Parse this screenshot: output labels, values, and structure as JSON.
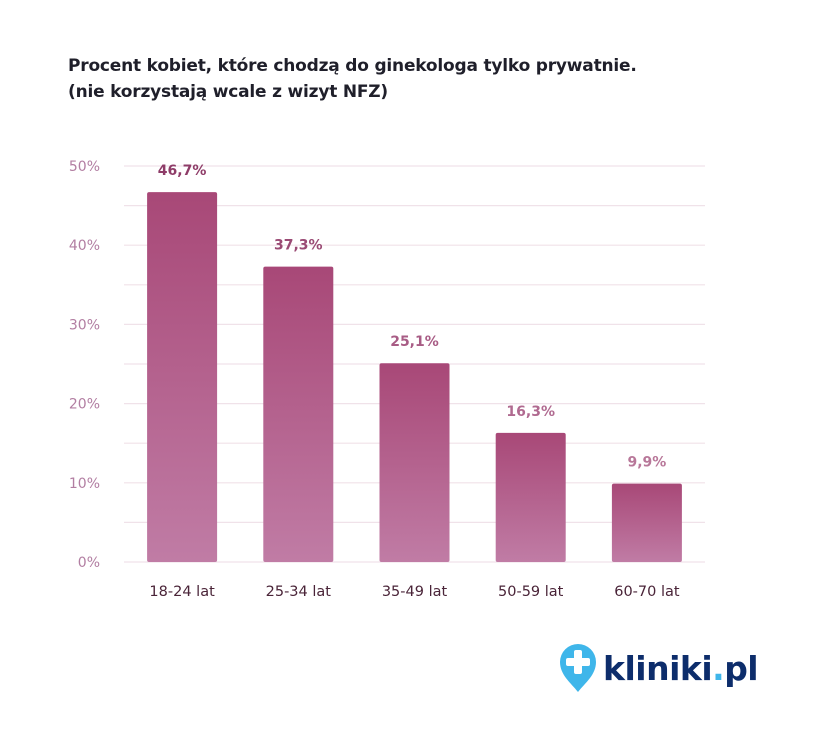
{
  "chart_data": {
    "type": "bar",
    "title": "Procent kobiet, które chodzą do ginekologa tylko prywatnie.",
    "subtitle": "(nie korzystają wcale z wizyt NFZ)",
    "categories": [
      "18-24 lat",
      "25-34 lat",
      "35-49 lat",
      "50-59 lat",
      "60-70 lat"
    ],
    "values": [
      46.7,
      37.3,
      25.1,
      16.3,
      9.9
    ],
    "data_labels": [
      "46,7%",
      "37,3%",
      "25,1%",
      "16,3%",
      "9,9%"
    ],
    "ylim": [
      0,
      50
    ],
    "yticks": [
      0,
      10,
      20,
      30,
      40,
      50
    ],
    "ytick_labels": [
      "0%",
      "10%",
      "20%",
      "30%",
      "40%",
      "50%"
    ],
    "grid": true,
    "xlabel": "",
    "ylabel": "",
    "colors": {
      "bar_top": "#a84877",
      "bar_bottom": "#c07ca5",
      "grid": "#f0e2e9",
      "tick": "#b27ea2",
      "category": "#4a2438"
    }
  },
  "logo": {
    "text": "kliniki",
    "dot": ".",
    "suffix": "pl",
    "icon": "map-pin-plus-icon",
    "text_color": "#0d2d6b",
    "accent": "#3fb6ea"
  }
}
